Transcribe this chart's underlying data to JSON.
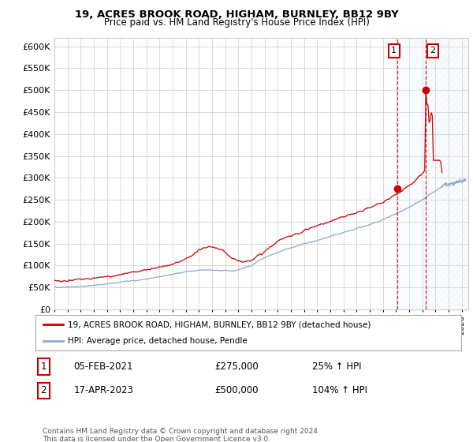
{
  "title1": "19, ACRES BROOK ROAD, HIGHAM, BURNLEY, BB12 9BY",
  "title2": "Price paid vs. HM Land Registry's House Price Index (HPI)",
  "ylabel_ticks": [
    0,
    50000,
    100000,
    150000,
    200000,
    250000,
    300000,
    350000,
    400000,
    450000,
    500000,
    550000,
    600000
  ],
  "xlim_left": 1995,
  "xlim_right": 2026.5,
  "ylim_top": 620000,
  "sale1_year": 2021.09,
  "sale1_price": 275000,
  "sale1_label": "05-FEB-2021",
  "sale1_pct": "25% ↑ HPI",
  "sale2_year": 2023.29,
  "sale2_price": 500000,
  "sale2_label": "17-APR-2023",
  "sale2_pct": "104% ↑ HPI",
  "legend_line1": "19, ACRES BROOK ROAD, HIGHAM, BURNLEY, BB12 9BY (detached house)",
  "legend_line2": "HPI: Average price, detached house, Pendle",
  "footer": "Contains HM Land Registry data © Crown copyright and database right 2024.\nThis data is licensed under the Open Government Licence v3.0.",
  "line_color_red": "#cc0000",
  "line_color_blue": "#88aacc",
  "shade_color": "#ddeeff",
  "hatch_color": "#bbccdd",
  "grid_color": "#cccccc",
  "bg_color": "#ffffff",
  "shade_start": 2021.09,
  "shade_mid": 2023.29,
  "shade_end": 2026.5
}
